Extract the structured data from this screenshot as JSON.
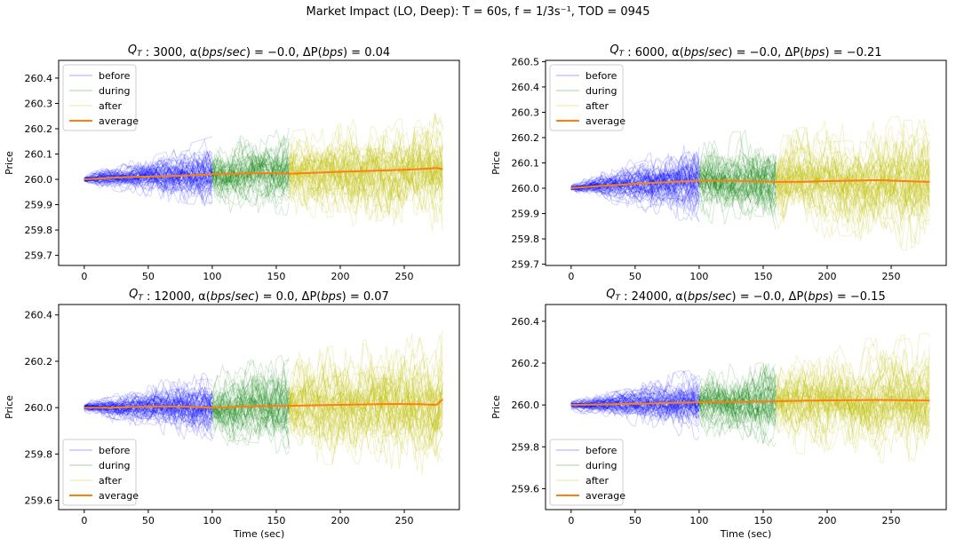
{
  "suptitle": "Market Impact (LO, Deep): T = 60s, f = 1/3s⁻¹, TOD = 0945",
  "colors": {
    "before": "#0000ff",
    "during": "#008000",
    "after": "#bfbf00",
    "average": "#ff7f0e"
  },
  "legend_labels": [
    "before",
    "during",
    "after",
    "average"
  ],
  "chart_data": [
    {
      "type": "line",
      "title": "Q_T : 3000, α(bps/sec) = −0.0, ΔP(bps) = 0.04",
      "title_parts": {
        "q": "3000",
        "alpha": "−0.0",
        "dp": "0.04"
      },
      "xlabel": "",
      "ylabel": "Price",
      "xlim": [
        -20,
        293
      ],
      "ylim": [
        259.66,
        260.47
      ],
      "xticks": [
        0,
        50,
        100,
        150,
        200,
        250
      ],
      "yticks": [
        259.7,
        259.8,
        259.9,
        260.0,
        260.1,
        260.2,
        260.3,
        260.4
      ],
      "ytick_labels": [
        "259.7",
        "259.8",
        "259.9",
        "260.0",
        "260.1",
        "260.2",
        "260.3",
        "260.4"
      ],
      "phases": {
        "before": [
          0,
          100
        ],
        "during": [
          100,
          160
        ],
        "after": [
          160,
          280
        ]
      },
      "legend_loc": "upper left",
      "average": {
        "x": [
          0,
          10,
          20,
          30,
          40,
          60,
          80,
          100,
          120,
          140,
          160,
          180,
          200,
          220,
          240,
          260,
          275,
          280
        ],
        "y": [
          260.0,
          260.003,
          260.006,
          260.008,
          260.01,
          260.012,
          260.015,
          260.02,
          260.022,
          260.025,
          260.022,
          260.026,
          260.03,
          260.033,
          260.036,
          260.04,
          260.045,
          260.04
        ]
      },
      "spread": {
        "before": [
          0.02,
          0.14
        ],
        "during": [
          0.14,
          0.17
        ],
        "after": [
          0.17,
          0.24
        ]
      }
    },
    {
      "type": "line",
      "title": "Q_T : 6000, α(bps/sec) = −0.0, ΔP(bps) = −0.21",
      "title_parts": {
        "q": "6000",
        "alpha": "−0.0",
        "dp": "−0.21"
      },
      "xlabel": "",
      "ylabel": "Price",
      "xlim": [
        -20,
        293
      ],
      "ylim": [
        259.695,
        260.505
      ],
      "xticks": [
        0,
        50,
        100,
        150,
        200,
        250
      ],
      "yticks": [
        259.7,
        259.8,
        259.9,
        260.0,
        260.1,
        260.2,
        260.3,
        260.4,
        260.5
      ],
      "ytick_labels": [
        "259.7",
        "259.8",
        "259.9",
        "260.0",
        "260.1",
        "260.2",
        "260.3",
        "260.4",
        "260.5"
      ],
      "phases": {
        "before": [
          0,
          100
        ],
        "during": [
          100,
          160
        ],
        "after": [
          160,
          280
        ]
      },
      "legend_loc": "upper left",
      "average": {
        "x": [
          0,
          20,
          40,
          60,
          80,
          100,
          120,
          140,
          160,
          180,
          200,
          220,
          240,
          260,
          280
        ],
        "y": [
          260.0,
          260.008,
          260.014,
          260.02,
          260.025,
          260.03,
          260.03,
          260.028,
          260.025,
          260.025,
          260.028,
          260.03,
          260.032,
          260.028,
          260.025
        ]
      },
      "spread": {
        "before": [
          0.02,
          0.17
        ],
        "during": [
          0.17,
          0.2
        ],
        "after": [
          0.2,
          0.26
        ]
      }
    },
    {
      "type": "line",
      "title": "Q_T : 12000, α(bps/sec) = 0.0, ΔP(bps) = 0.07",
      "title_parts": {
        "q": "12000",
        "alpha": "0.0",
        "dp": "0.07"
      },
      "xlabel": "Time (sec)",
      "ylabel": "Price",
      "xlim": [
        -20,
        293
      ],
      "ylim": [
        259.56,
        260.445
      ],
      "xticks": [
        0,
        50,
        100,
        150,
        200,
        250
      ],
      "yticks": [
        259.6,
        259.8,
        260.0,
        260.2,
        260.4
      ],
      "ytick_labels": [
        "259.6",
        "259.8",
        "260.0",
        "260.2",
        "260.4"
      ],
      "phases": {
        "before": [
          0,
          100
        ],
        "during": [
          100,
          160
        ],
        "after": [
          160,
          280
        ]
      },
      "legend_loc": "lower left",
      "average": {
        "x": [
          0,
          20,
          40,
          60,
          80,
          100,
          120,
          140,
          160,
          180,
          200,
          220,
          240,
          260,
          275,
          280
        ],
        "y": [
          260.0,
          260.0,
          260.003,
          260.005,
          260.004,
          260.0,
          260.004,
          260.006,
          260.008,
          260.01,
          260.012,
          260.014,
          260.016,
          260.015,
          260.012,
          260.035
        ]
      },
      "spread": {
        "before": [
          0.03,
          0.17
        ],
        "during": [
          0.17,
          0.22
        ],
        "after": [
          0.22,
          0.32
        ]
      }
    },
    {
      "type": "line",
      "title": "Q_T : 24000, α(bps/sec) = −0.0, ΔP(bps) = −0.15",
      "title_parts": {
        "q": "24000",
        "alpha": "−0.0",
        "dp": "−0.15"
      },
      "xlabel": "Time (sec)",
      "ylabel": "Price",
      "xlim": [
        -20,
        293
      ],
      "ylim": [
        259.5,
        260.48
      ],
      "xticks": [
        0,
        50,
        100,
        150,
        200,
        250
      ],
      "yticks": [
        259.6,
        259.8,
        260.0,
        260.2,
        260.4
      ],
      "ytick_labels": [
        "259.6",
        "259.8",
        "260.0",
        "260.2",
        "260.4"
      ],
      "phases": {
        "before": [
          0,
          100
        ],
        "during": [
          100,
          160
        ],
        "after": [
          160,
          280
        ]
      },
      "legend_loc": "lower left",
      "average": {
        "x": [
          0,
          20,
          40,
          60,
          80,
          100,
          120,
          140,
          160,
          180,
          200,
          220,
          240,
          260,
          280
        ],
        "y": [
          260.0,
          260.002,
          260.005,
          260.007,
          260.01,
          260.013,
          260.015,
          260.016,
          260.018,
          260.02,
          260.022,
          260.023,
          260.024,
          260.023,
          260.022
        ]
      },
      "spread": {
        "before": [
          0.03,
          0.17
        ],
        "during": [
          0.17,
          0.22
        ],
        "after": [
          0.22,
          0.3
        ]
      }
    }
  ]
}
